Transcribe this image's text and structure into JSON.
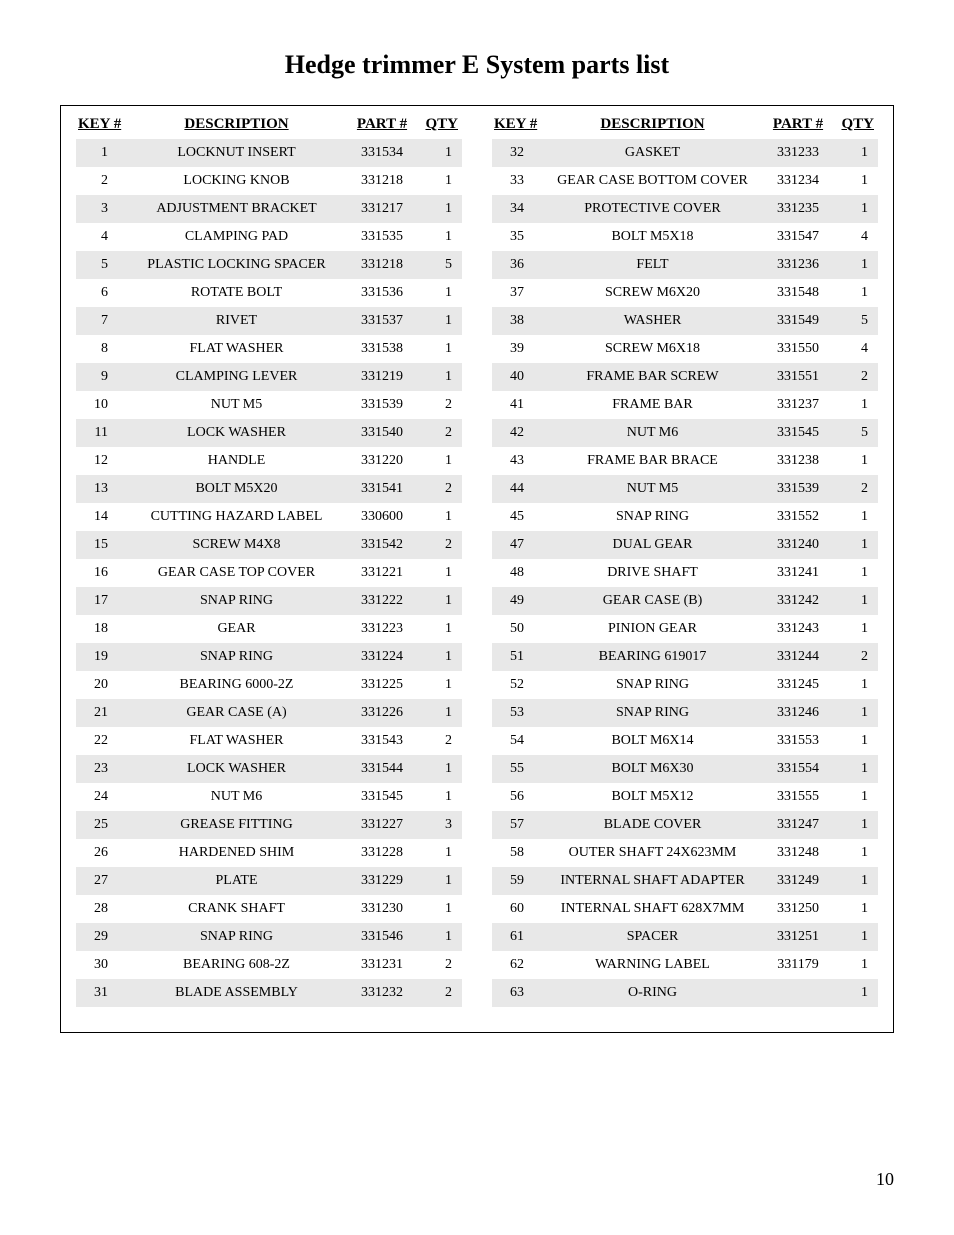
{
  "title": "Hedge trimmer E System parts list",
  "page_number": "10",
  "headers": {
    "key": "KEY #",
    "description": "DESCRIPTION",
    "part": "PART #",
    "qty": "QTY"
  },
  "table_style": {
    "background_color": "#ffffff",
    "stripe_color": "#e8e8e8",
    "border_color": "#000000",
    "text_color": "#000000",
    "title_fontsize": 26,
    "header_fontsize": 15,
    "body_fontsize": 14,
    "font_family": "Georgia, Times New Roman, serif"
  },
  "left_rows": [
    {
      "key": "1",
      "desc": "LOCKNUT INSERT",
      "part": "331534",
      "qty": "1"
    },
    {
      "key": "2",
      "desc": "LOCKING KNOB",
      "part": "331218",
      "qty": "1"
    },
    {
      "key": "3",
      "desc": "ADJUSTMENT BRACKET",
      "part": "331217",
      "qty": "1"
    },
    {
      "key": "4",
      "desc": "CLAMPING PAD",
      "part": "331535",
      "qty": "1"
    },
    {
      "key": "5",
      "desc": "PLASTIC LOCKING SPACER",
      "part": "331218",
      "qty": "5"
    },
    {
      "key": "6",
      "desc": "ROTATE BOLT",
      "part": "331536",
      "qty": "1"
    },
    {
      "key": "7",
      "desc": "RIVET",
      "part": "331537",
      "qty": "1"
    },
    {
      "key": "8",
      "desc": "FLAT WASHER",
      "part": "331538",
      "qty": "1"
    },
    {
      "key": "9",
      "desc": "CLAMPING LEVER",
      "part": "331219",
      "qty": "1"
    },
    {
      "key": "10",
      "desc": "NUT M5",
      "part": "331539",
      "qty": "2"
    },
    {
      "key": "11",
      "desc": "LOCK WASHER",
      "part": "331540",
      "qty": "2"
    },
    {
      "key": "12",
      "desc": "HANDLE",
      "part": "331220",
      "qty": "1"
    },
    {
      "key": "13",
      "desc": "BOLT M5X20",
      "part": "331541",
      "qty": "2"
    },
    {
      "key": "14",
      "desc": "CUTTING HAZARD LABEL",
      "part": "330600",
      "qty": "1"
    },
    {
      "key": "15",
      "desc": "SCREW M4X8",
      "part": "331542",
      "qty": "2"
    },
    {
      "key": "16",
      "desc": "GEAR CASE TOP COVER",
      "part": "331221",
      "qty": "1"
    },
    {
      "key": "17",
      "desc": "SNAP RING",
      "part": "331222",
      "qty": "1"
    },
    {
      "key": "18",
      "desc": "GEAR",
      "part": "331223",
      "qty": "1"
    },
    {
      "key": "19",
      "desc": "SNAP RING",
      "part": "331224",
      "qty": "1"
    },
    {
      "key": "20",
      "desc": "BEARING 6000-2Z",
      "part": "331225",
      "qty": "1"
    },
    {
      "key": "21",
      "desc": "GEAR CASE (A)",
      "part": "331226",
      "qty": "1"
    },
    {
      "key": "22",
      "desc": "FLAT WASHER",
      "part": "331543",
      "qty": "2"
    },
    {
      "key": "23",
      "desc": "LOCK WASHER",
      "part": "331544",
      "qty": "1"
    },
    {
      "key": "24",
      "desc": "NUT M6",
      "part": "331545",
      "qty": "1"
    },
    {
      "key": "25",
      "desc": "GREASE FITTING",
      "part": "331227",
      "qty": "3"
    },
    {
      "key": "26",
      "desc": "HARDENED SHIM",
      "part": "331228",
      "qty": "1"
    },
    {
      "key": "27",
      "desc": "PLATE",
      "part": "331229",
      "qty": "1"
    },
    {
      "key": "28",
      "desc": "CRANK SHAFT",
      "part": "331230",
      "qty": "1"
    },
    {
      "key": "29",
      "desc": "SNAP RING",
      "part": "331546",
      "qty": "1"
    },
    {
      "key": "30",
      "desc": "BEARING 608-2Z",
      "part": "331231",
      "qty": "2"
    },
    {
      "key": "31",
      "desc": "BLADE ASSEMBLY",
      "part": "331232",
      "qty": "2"
    }
  ],
  "right_rows": [
    {
      "key": "32",
      "desc": "GASKET",
      "part": "331233",
      "qty": "1"
    },
    {
      "key": "33",
      "desc": "GEAR CASE BOTTOM COVER",
      "part": "331234",
      "qty": "1"
    },
    {
      "key": "34",
      "desc": "PROTECTIVE COVER",
      "part": "331235",
      "qty": "1"
    },
    {
      "key": "35",
      "desc": "BOLT M5X18",
      "part": "331547",
      "qty": "4"
    },
    {
      "key": "36",
      "desc": "FELT",
      "part": "331236",
      "qty": "1"
    },
    {
      "key": "37",
      "desc": "SCREW M6X20",
      "part": "331548",
      "qty": "1"
    },
    {
      "key": "38",
      "desc": "WASHER",
      "part": "331549",
      "qty": "5"
    },
    {
      "key": "39",
      "desc": "SCREW M6X18",
      "part": "331550",
      "qty": "4"
    },
    {
      "key": "40",
      "desc": "FRAME BAR SCREW",
      "part": "331551",
      "qty": "2"
    },
    {
      "key": "41",
      "desc": "FRAME BAR",
      "part": "331237",
      "qty": "1"
    },
    {
      "key": "42",
      "desc": "NUT M6",
      "part": "331545",
      "qty": "5"
    },
    {
      "key": "43",
      "desc": "FRAME BAR BRACE",
      "part": "331238",
      "qty": "1"
    },
    {
      "key": "44",
      "desc": "NUT M5",
      "part": "331539",
      "qty": "2"
    },
    {
      "key": "45",
      "desc": "SNAP RING",
      "part": "331552",
      "qty": "1"
    },
    {
      "key": "47",
      "desc": "DUAL GEAR",
      "part": "331240",
      "qty": "1"
    },
    {
      "key": "48",
      "desc": "DRIVE SHAFT",
      "part": "331241",
      "qty": "1"
    },
    {
      "key": "49",
      "desc": "GEAR CASE (B)",
      "part": "331242",
      "qty": "1"
    },
    {
      "key": "50",
      "desc": "PINION GEAR",
      "part": "331243",
      "qty": "1"
    },
    {
      "key": "51",
      "desc": "BEARING 619017",
      "part": "331244",
      "qty": "2"
    },
    {
      "key": "52",
      "desc": "SNAP RING",
      "part": "331245",
      "qty": "1"
    },
    {
      "key": "53",
      "desc": "SNAP RING",
      "part": "331246",
      "qty": "1"
    },
    {
      "key": "54",
      "desc": "BOLT M6X14",
      "part": "331553",
      "qty": "1"
    },
    {
      "key": "55",
      "desc": "BOLT M6X30",
      "part": "331554",
      "qty": "1"
    },
    {
      "key": "56",
      "desc": "BOLT M5X12",
      "part": "331555",
      "qty": "1"
    },
    {
      "key": "57",
      "desc": "BLADE COVER",
      "part": "331247",
      "qty": "1"
    },
    {
      "key": "58",
      "desc": "OUTER SHAFT 24X623MM",
      "part": "331248",
      "qty": "1"
    },
    {
      "key": "59",
      "desc": "INTERNAL SHAFT ADAPTER",
      "part": "331249",
      "qty": "1"
    },
    {
      "key": "60",
      "desc": "INTERNAL SHAFT 628X7MM",
      "part": "331250",
      "qty": "1"
    },
    {
      "key": "61",
      "desc": "SPACER",
      "part": "331251",
      "qty": "1"
    },
    {
      "key": "62",
      "desc": "WARNING LABEL",
      "part": "331179",
      "qty": "1"
    },
    {
      "key": "63",
      "desc": "O-RING",
      "part": "",
      "qty": "1"
    }
  ]
}
